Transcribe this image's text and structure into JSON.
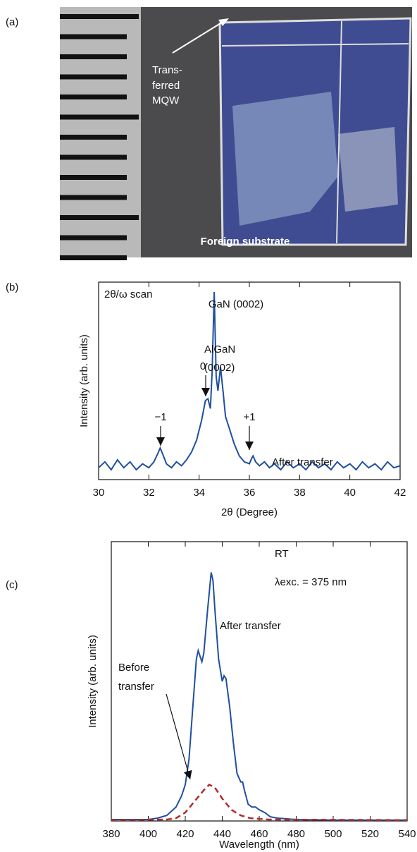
{
  "panel_a": {
    "label": "(a)",
    "arrow_lines": [
      "Trans-",
      "ferred",
      "MQW"
    ],
    "caption": "Foreign substrate"
  },
  "chart_data": [
    {
      "type": "line",
      "panel_label": "(b)",
      "x_label": "2θ (Degree)",
      "y_label": "Intensity (arb. units)",
      "x": [
        30,
        30.25,
        30.5,
        30.75,
        31,
        31.25,
        31.5,
        31.75,
        32,
        32.2,
        32.35,
        32.45,
        32.55,
        32.7,
        32.9,
        33.1,
        33.3,
        33.5,
        33.7,
        33.9,
        34.1,
        34.25,
        34.35,
        34.45,
        34.52,
        34.6,
        34.68,
        34.75,
        34.85,
        34.95,
        35.05,
        35.2,
        35.4,
        35.6,
        35.8,
        36,
        36.1,
        36.15,
        36.25,
        36.4,
        36.6,
        36.8,
        37,
        37.25,
        37.5,
        37.75,
        38,
        38.25,
        38.5,
        38.75,
        39,
        39.25,
        39.5,
        39.75,
        40,
        40.25,
        40.5,
        40.75,
        41,
        41.25,
        41.5,
        41.75,
        42
      ],
      "series": [
        {
          "name": "After transfer",
          "color": "#1f4fa0",
          "values": [
            6,
            9,
            5,
            10,
            6,
            9,
            5,
            8,
            6,
            9,
            13,
            16,
            13,
            8,
            6,
            9,
            7,
            10,
            14,
            20,
            30,
            40,
            41,
            36,
            55,
            95,
            52,
            45,
            57,
            45,
            32,
            26,
            18,
            12,
            9,
            8,
            11,
            12,
            9,
            7,
            9,
            6,
            8,
            5,
            9,
            6,
            8,
            5,
            9,
            6,
            8,
            5,
            9,
            6,
            8,
            5,
            9,
            6,
            8,
            5,
            9,
            6,
            7
          ]
        }
      ],
      "xlim": [
        30,
        42
      ],
      "xticks": [
        30,
        32,
        34,
        36,
        38,
        40,
        42
      ],
      "ylim": [
        0,
        100
      ],
      "annotations": [
        "2θ/ω scan",
        "GaN (0002)",
        "AlGaN",
        "(0002)",
        "0",
        "−1",
        "+1"
      ]
    },
    {
      "type": "line",
      "panel_label": "(c)",
      "x_label": "Wavelength (nm)",
      "y_label": "Intensity (arb. units)",
      "x": [
        380,
        400,
        405,
        410,
        415,
        418,
        420,
        422,
        424,
        426,
        427,
        428,
        429,
        430,
        432,
        434,
        435,
        436,
        438,
        440,
        441,
        442,
        444,
        446,
        448,
        450,
        451,
        452,
        454,
        456,
        458,
        460,
        463,
        466,
        470,
        480,
        500,
        540
      ],
      "series": [
        {
          "name": "After transfer",
          "color": "#1f4fa0",
          "values": [
            0.5,
            0.5,
            1,
            2,
            5,
            9,
            13,
            22,
            40,
            58,
            61,
            59,
            57,
            60,
            75,
            89,
            86,
            76,
            58,
            50,
            52,
            51,
            41,
            28,
            17,
            14,
            14,
            11,
            6,
            5,
            5,
            4,
            3,
            1.5,
            1,
            0.5,
            0.3,
            0.3
          ]
        }
      ],
      "x2": [
        380,
        410,
        415,
        420,
        425,
        430,
        433,
        436,
        440,
        445,
        450,
        455,
        465,
        540
      ],
      "series2": [
        {
          "color": "#b22a2a",
          "values": [
            0.3,
            0.5,
            1,
            3,
            7,
            11,
            13,
            12,
            8,
            4,
            2,
            1,
            0.5,
            0.3
          ]
        }
      ],
      "xlim": [
        380,
        540
      ],
      "xticks": [
        380,
        400,
        420,
        440,
        460,
        480,
        500,
        520,
        540
      ],
      "ylim": [
        0,
        100
      ],
      "annotations": [
        "RT",
        "λexc. = 375 nm",
        "Before",
        "transfer"
      ]
    }
  ]
}
